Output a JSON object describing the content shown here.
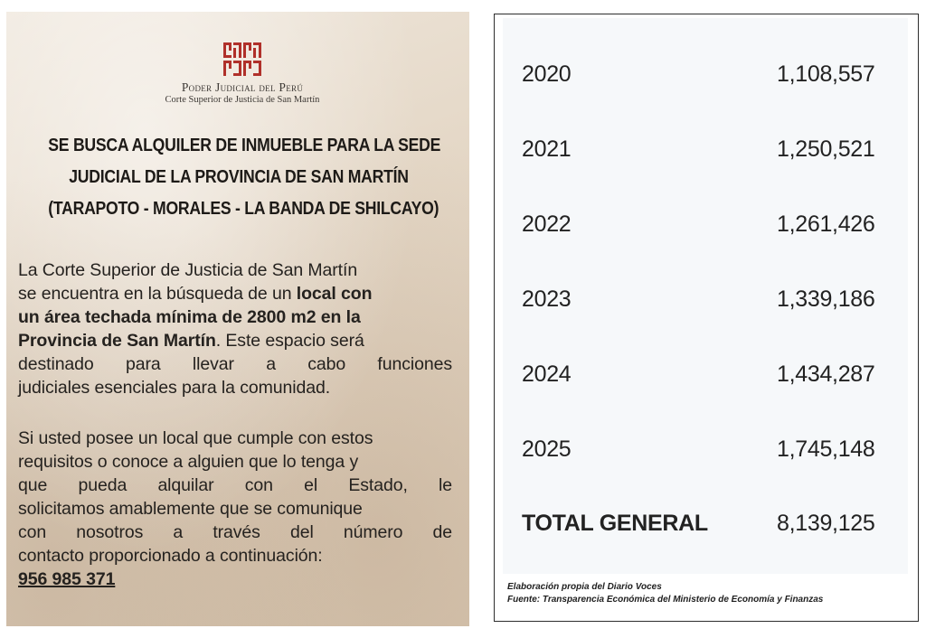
{
  "notice": {
    "logo": {
      "name": "Poder Judicial del Perú",
      "subtitle": "Corte Superior de Justicia de San Martín",
      "brand_color": "#b0302a"
    },
    "headline": [
      "SE BUSCA ALQUILER DE INMUEBLE PARA LA SEDE",
      "JUDICIAL DE LA PROVINCIA DE SAN MARTÍN",
      "(TARAPOTO - MORALES - LA BANDA DE SHILCAYO)"
    ],
    "paragraph1": {
      "l1": "La Corte Superior de Justicia de San Martín",
      "l2_pre": "se encuentra en la búsqueda de un ",
      "l2_bold": "local con",
      "l3_bold": "un área techada mínima de 2800 m2 en la",
      "l4_bold": "Provincia de San Martín",
      "l4_post": ". Este espacio será",
      "l5": "destinado para llevar a cabo funciones",
      "l6": "judiciales esenciales para la comunidad."
    },
    "paragraph2": {
      "l1": "Si usted posee un local que cumple con estos",
      "l2": "requisitos o conoce a alguien que lo tenga y",
      "l3": "que pueda alquilar con el Estado, le",
      "l4": "solicitamos amablemente que se comunique",
      "l5": "con nosotros a través del número de",
      "l6": "contacto proporcionado a continuación:",
      "phone": "956 985 371"
    }
  },
  "table": {
    "rows": [
      {
        "year": "2020",
        "value": "1,108,557"
      },
      {
        "year": "2021",
        "value": "1,250,521"
      },
      {
        "year": "2022",
        "value": "1,261,426"
      },
      {
        "year": "2023",
        "value": "1,339,186"
      },
      {
        "year": "2024",
        "value": "1,434,287"
      },
      {
        "year": "2025",
        "value": "1,745,148"
      }
    ],
    "total": {
      "label": "TOTAL GENERAL",
      "value": "8,139,125"
    },
    "footnote": {
      "line1": "Elaboración propia del Diario Voces",
      "line2": "Fuente: Transparencia Económica del Ministerio de Economía y Finanzas"
    }
  }
}
